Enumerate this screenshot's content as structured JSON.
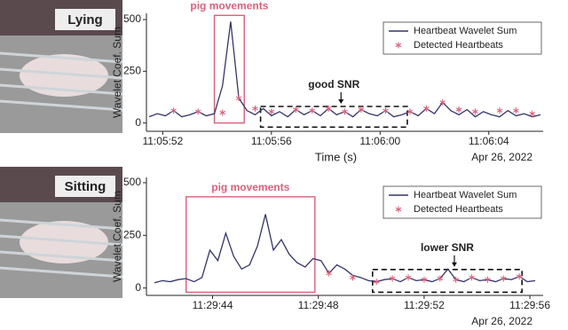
{
  "chart_data": [
    {
      "type": "line",
      "panel_label": "Lying",
      "ylabel": "Wavelet Coef. Sum",
      "xlabel": "Time (s)",
      "date": "Apr 26, 2022",
      "xlim": [
        39951.4,
        39966.0
      ],
      "ylim": [
        -40,
        530
      ],
      "xticks": [
        {
          "value": 39952,
          "label": "11:05:52"
        },
        {
          "value": 39956,
          "label": "11:05:56"
        },
        {
          "value": 39960,
          "label": "11:06:00"
        },
        {
          "value": 39964,
          "label": "11:06:04"
        }
      ],
      "yticks": [
        0,
        250,
        500
      ],
      "legend": "upper right",
      "series": [
        {
          "name": "Heartbeat Wavelet Sum",
          "type": "line",
          "color": "#35356b",
          "x": [
            39951.5,
            39951.8,
            39952.1,
            39952.4,
            39952.7,
            39953.0,
            39953.3,
            39953.6,
            39953.9,
            39954.2,
            39954.5,
            39954.8,
            39955.1,
            39955.4,
            39955.7,
            39956.0,
            39956.3,
            39956.6,
            39956.9,
            39957.2,
            39957.5,
            39957.8,
            39958.1,
            39958.4,
            39958.7,
            39959.0,
            39959.3,
            39959.6,
            39959.9,
            39960.2,
            39960.5,
            39960.8,
            39961.1,
            39961.4,
            39961.7,
            39962.0,
            39962.3,
            39962.6,
            39962.9,
            39963.2,
            39963.5,
            39963.8,
            39964.1,
            39964.4,
            39964.7,
            39965.0,
            39965.3,
            39965.6,
            39965.9
          ],
          "values": [
            30,
            45,
            35,
            60,
            30,
            40,
            55,
            35,
            45,
            180,
            490,
            120,
            60,
            40,
            70,
            35,
            55,
            30,
            65,
            40,
            60,
            35,
            70,
            40,
            55,
            30,
            65,
            45,
            35,
            60,
            30,
            40,
            55,
            35,
            70,
            45,
            100,
            60,
            40,
            65,
            30,
            55,
            40,
            30,
            60,
            35,
            45,
            30,
            40
          ]
        },
        {
          "name": "Detected Heartbeats",
          "type": "scatter",
          "color": "#d9607a",
          "x": [
            39952.4,
            39953.3,
            39954.2,
            39954.8,
            39955.4,
            39956.0,
            39956.9,
            39957.5,
            39958.1,
            39958.7,
            39959.3,
            39960.2,
            39961.1,
            39961.7,
            39962.3,
            39962.9,
            39963.5,
            39964.4,
            39965.0,
            39965.6
          ],
          "values": [
            60,
            55,
            50,
            120,
            70,
            55,
            65,
            60,
            70,
            55,
            65,
            60,
            55,
            70,
            100,
            65,
            55,
            60,
            60,
            45
          ]
        }
      ],
      "annotations": [
        {
          "text": "pig movements",
          "style": "solid",
          "color": "#d9607a",
          "x": [
            39953.9,
            39955.0
          ],
          "y": [
            0,
            520
          ]
        },
        {
          "text": "good SNR",
          "style": "dashed",
          "color": "#111111",
          "x": [
            39955.6,
            39961.0
          ],
          "y": [
            -20,
            80
          ]
        }
      ]
    },
    {
      "type": "line",
      "panel_label": "Sitting",
      "ylabel": "Wavelet Coef. Sum",
      "date": "Apr 26, 2022",
      "xlim": [
        41381.5,
        41396.5
      ],
      "ylim": [
        -35,
        525
      ],
      "xticks": [
        {
          "value": 41384,
          "label": "11:29:44"
        },
        {
          "value": 41388,
          "label": "11:29:48"
        },
        {
          "value": 41392,
          "label": "11:29:52"
        },
        {
          "value": 41396,
          "label": "11:29:56"
        }
      ],
      "yticks": [
        0,
        250,
        500
      ],
      "legend": "upper right",
      "series": [
        {
          "name": "Heartbeat Wavelet Sum",
          "type": "line",
          "color": "#35356b",
          "x": [
            41381.8,
            41382.1,
            41382.4,
            41382.7,
            41383.0,
            41383.3,
            41383.6,
            41383.9,
            41384.2,
            41384.5,
            41384.8,
            41385.1,
            41385.4,
            41385.7,
            41386.0,
            41386.3,
            41386.6,
            41386.9,
            41387.2,
            41387.5,
            41387.8,
            41388.1,
            41388.4,
            41388.7,
            41389.0,
            41389.3,
            41389.6,
            41389.9,
            41390.2,
            41390.5,
            41390.8,
            41391.1,
            41391.4,
            41391.7,
            41392.0,
            41392.3,
            41392.6,
            41392.9,
            41393.2,
            41393.5,
            41393.8,
            41394.1,
            41394.4,
            41394.7,
            41395.0,
            41395.3,
            41395.6,
            41395.9,
            41396.2
          ],
          "values": [
            25,
            35,
            30,
            40,
            45,
            30,
            50,
            180,
            130,
            260,
            150,
            90,
            110,
            200,
            350,
            180,
            230,
            160,
            120,
            100,
            140,
            130,
            70,
            110,
            90,
            60,
            50,
            35,
            30,
            40,
            45,
            30,
            50,
            35,
            40,
            30,
            45,
            90,
            40,
            30,
            50,
            35,
            40,
            30,
            45,
            40,
            55,
            30,
            35
          ]
        },
        {
          "name": "Detected Heartbeats",
          "type": "scatter",
          "color": "#d9607a",
          "x": [
            41388.4,
            41389.3,
            41390.2,
            41390.8,
            41391.4,
            41392.0,
            41392.6,
            41393.2,
            41393.8,
            41394.4,
            41395.0,
            41395.6
          ],
          "values": [
            70,
            50,
            30,
            45,
            50,
            40,
            45,
            40,
            50,
            40,
            45,
            55
          ]
        }
      ],
      "annotations": [
        {
          "text": "pig movements",
          "style": "solid",
          "color": "#d9607a",
          "x": [
            41383.0,
            41387.87
          ],
          "y": [
            -20,
            433
          ]
        },
        {
          "text": "lower SNR",
          "style": "dashed",
          "color": "#111111",
          "x": [
            41390.05,
            41395.7
          ],
          "y": [
            -20,
            88
          ]
        }
      ]
    }
  ]
}
